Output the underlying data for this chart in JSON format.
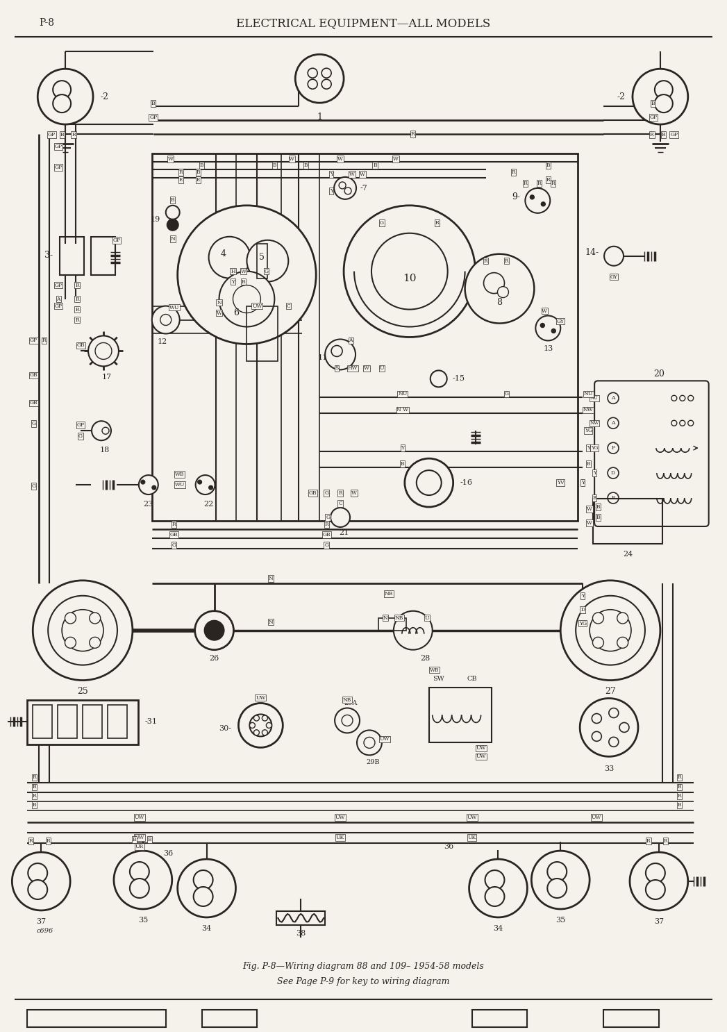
{
  "page_label": "P-8",
  "title": "ELECTRICAL EQUIPMENT—ALL MODELS",
  "fig_caption": "Fig. P-8—Wiring diagram 88 and 109– 1954-58 models",
  "fig_subcaption": "See Page P-9 for key to wiring diagram",
  "bg_color": "#f5f2ec",
  "line_color": "#2a2520",
  "fig_width": 10.47,
  "fig_height": 14.86,
  "dpi": 100
}
